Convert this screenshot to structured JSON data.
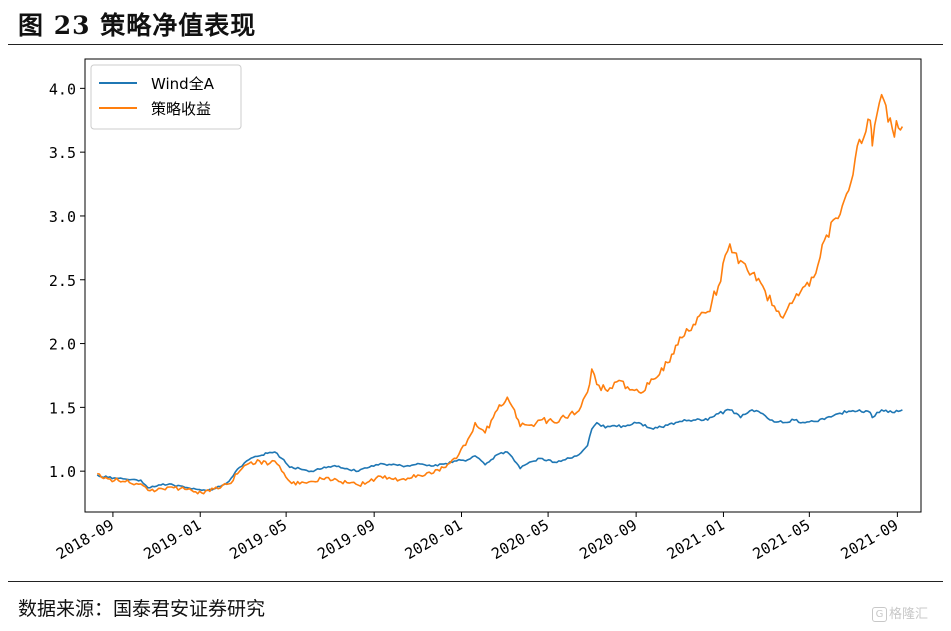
{
  "figure": {
    "title": "图 23 策略净值表现",
    "source": "数据来源：国泰君安证券研究",
    "watermark_label": "格隆汇",
    "watermark_icon": "G"
  },
  "chart_data": {
    "type": "line",
    "title": "",
    "xlabel": "",
    "ylabel": "",
    "ylim": [
      0.68,
      4.23
    ],
    "xlim": [
      "2018-07-24",
      "2021-10-04"
    ],
    "grid": false,
    "legend_position": "top-left",
    "yticks": [
      1.0,
      1.5,
      2.0,
      2.5,
      3.0,
      3.5,
      4.0
    ],
    "ytick_labels": [
      "1.0",
      "1.5",
      "2.0",
      "2.5",
      "3.0",
      "3.5",
      "4.0"
    ],
    "xticks": [
      "2018-09-01",
      "2019-01-01",
      "2019-05-01",
      "2019-09-01",
      "2020-01-01",
      "2020-05-01",
      "2020-09-01",
      "2021-01-01",
      "2021-05-01",
      "2021-09-01"
    ],
    "xtick_labels": [
      "2018-09",
      "2019-01",
      "2019-05",
      "2019-09",
      "2020-01",
      "2020-05",
      "2020-09",
      "2021-01",
      "2021-05",
      "2021-09"
    ],
    "series": [
      {
        "name": "Wind全A",
        "color": "#1f77b4",
        "x": [
          "2018-08-10",
          "2018-08-25",
          "2018-09-15",
          "2018-10-10",
          "2018-10-20",
          "2018-11-10",
          "2018-11-25",
          "2018-12-20",
          "2019-01-03",
          "2019-01-20",
          "2019-02-10",
          "2019-02-25",
          "2019-03-10",
          "2019-03-25",
          "2019-04-05",
          "2019-04-15",
          "2019-04-25",
          "2019-05-06",
          "2019-05-20",
          "2019-06-05",
          "2019-06-20",
          "2019-07-05",
          "2019-07-25",
          "2019-08-10",
          "2019-08-25",
          "2019-09-10",
          "2019-09-25",
          "2019-10-15",
          "2019-11-01",
          "2019-11-20",
          "2019-12-10",
          "2019-12-25",
          "2020-01-10",
          "2020-01-20",
          "2020-02-03",
          "2020-02-20",
          "2020-03-05",
          "2020-03-15",
          "2020-03-23",
          "2020-04-05",
          "2020-04-20",
          "2020-05-10",
          "2020-05-25",
          "2020-06-10",
          "2020-06-25",
          "2020-07-01",
          "2020-07-08",
          "2020-07-20",
          "2020-08-05",
          "2020-08-20",
          "2020-09-05",
          "2020-09-25",
          "2020-10-15",
          "2020-11-01",
          "2020-11-20",
          "2020-12-10",
          "2020-12-25",
          "2021-01-10",
          "2021-01-25",
          "2021-02-10",
          "2021-02-25",
          "2021-03-10",
          "2021-03-25",
          "2021-04-10",
          "2021-04-25",
          "2021-05-10",
          "2021-05-25",
          "2021-06-10",
          "2021-06-25",
          "2021-07-10",
          "2021-07-25",
          "2021-07-28",
          "2021-08-10",
          "2021-08-25",
          "2021-09-08"
        ],
        "values": [
          0.97,
          0.95,
          0.94,
          0.93,
          0.87,
          0.9,
          0.89,
          0.86,
          0.85,
          0.86,
          0.92,
          1.03,
          1.09,
          1.12,
          1.14,
          1.15,
          1.1,
          1.03,
          1.02,
          1.0,
          1.02,
          1.04,
          1.02,
          1.0,
          1.03,
          1.06,
          1.05,
          1.04,
          1.06,
          1.04,
          1.06,
          1.08,
          1.09,
          1.12,
          1.05,
          1.13,
          1.15,
          1.08,
          1.02,
          1.07,
          1.1,
          1.07,
          1.09,
          1.12,
          1.2,
          1.33,
          1.38,
          1.34,
          1.35,
          1.36,
          1.38,
          1.33,
          1.36,
          1.39,
          1.4,
          1.4,
          1.45,
          1.48,
          1.42,
          1.48,
          1.45,
          1.4,
          1.38,
          1.4,
          1.38,
          1.39,
          1.42,
          1.45,
          1.47,
          1.48,
          1.46,
          1.42,
          1.48,
          1.46,
          1.48
        ]
      },
      {
        "name": "策略收益",
        "color": "#ff7f0e",
        "x": [
          "2018-08-10",
          "2018-08-25",
          "2018-09-15",
          "2018-10-10",
          "2018-10-20",
          "2018-11-10",
          "2018-11-25",
          "2018-12-20",
          "2019-01-03",
          "2019-01-20",
          "2019-02-10",
          "2019-02-25",
          "2019-03-10",
          "2019-03-25",
          "2019-04-05",
          "2019-04-15",
          "2019-04-25",
          "2019-05-06",
          "2019-05-20",
          "2019-06-05",
          "2019-06-20",
          "2019-07-05",
          "2019-07-25",
          "2019-08-10",
          "2019-08-25",
          "2019-09-10",
          "2019-09-25",
          "2019-10-15",
          "2019-11-01",
          "2019-11-20",
          "2019-12-10",
          "2019-12-25",
          "2020-01-10",
          "2020-01-20",
          "2020-02-03",
          "2020-02-20",
          "2020-03-05",
          "2020-03-15",
          "2020-03-23",
          "2020-04-05",
          "2020-04-20",
          "2020-05-10",
          "2020-05-25",
          "2020-06-10",
          "2020-06-25",
          "2020-07-01",
          "2020-07-08",
          "2020-07-20",
          "2020-08-05",
          "2020-08-20",
          "2020-09-05",
          "2020-09-25",
          "2020-10-15",
          "2020-11-01",
          "2020-11-20",
          "2020-12-10",
          "2020-12-25",
          "2021-01-10",
          "2021-01-25",
          "2021-02-10",
          "2021-02-25",
          "2021-03-10",
          "2021-03-25",
          "2021-04-10",
          "2021-04-25",
          "2021-05-10",
          "2021-05-25",
          "2021-06-10",
          "2021-06-25",
          "2021-07-10",
          "2021-07-25",
          "2021-07-28",
          "2021-08-10",
          "2021-08-25",
          "2021-09-08"
        ],
        "values": [
          0.98,
          0.94,
          0.92,
          0.9,
          0.85,
          0.86,
          0.87,
          0.85,
          0.83,
          0.86,
          0.9,
          1.0,
          1.06,
          1.08,
          1.05,
          1.08,
          1.0,
          0.92,
          0.9,
          0.92,
          0.94,
          0.93,
          0.91,
          0.89,
          0.92,
          0.96,
          0.94,
          0.93,
          0.97,
          0.98,
          1.03,
          1.1,
          1.25,
          1.38,
          1.3,
          1.48,
          1.58,
          1.48,
          1.35,
          1.36,
          1.4,
          1.38,
          1.42,
          1.46,
          1.62,
          1.8,
          1.68,
          1.64,
          1.7,
          1.66,
          1.62,
          1.72,
          1.85,
          2.05,
          2.15,
          2.25,
          2.45,
          2.78,
          2.65,
          2.55,
          2.45,
          2.3,
          2.2,
          2.35,
          2.45,
          2.55,
          2.85,
          2.98,
          3.2,
          3.6,
          3.75,
          3.55,
          3.95,
          3.68,
          3.7
        ]
      }
    ]
  }
}
